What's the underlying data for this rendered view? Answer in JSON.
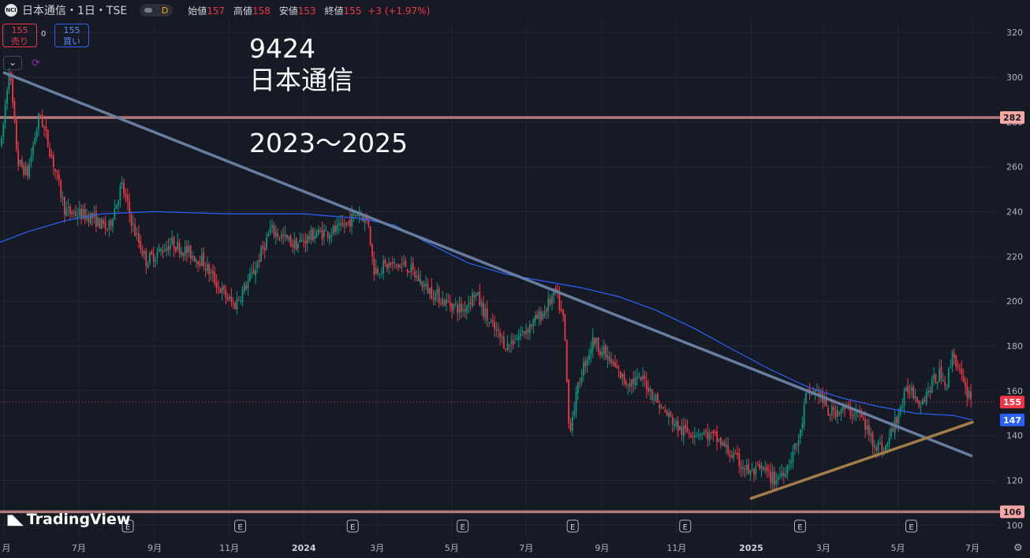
{
  "header": {
    "logo_text": "NCI",
    "symbol_title": "日本通信・1日・TSE",
    "pill_letter": "D",
    "open_label": "始値",
    "open_value": "157",
    "high_label": "高値",
    "high_value": "158",
    "low_label": "安値",
    "low_value": "153",
    "close_label": "終値",
    "close_value": "155",
    "change": "+3 (+1.97%)"
  },
  "trade": {
    "sell_price": "155",
    "sell_label": "売り",
    "spread": "0",
    "buy_price": "155",
    "buy_label": "買い"
  },
  "annotations": {
    "line1": "9424",
    "line2": "日本通信",
    "line3": "2023〜2025"
  },
  "watermark": "TradingView",
  "icons": [
    "chevron-down-icon",
    "sync-icon",
    "tradingview-logo-icon",
    "settings-gear-icon",
    "earnings-e-icon"
  ],
  "colors": {
    "up": "#089981",
    "down": "#f23645",
    "ma": "#2962ff",
    "hline": "#b07a79",
    "downtrend": "#677ea1",
    "uptrend": "#a47c48"
  },
  "chart_data": {
    "type": "candlestick",
    "title": "",
    "ylim": [
      97,
      327
    ],
    "y_ticks": [
      100,
      120,
      140,
      160,
      180,
      200,
      220,
      240,
      260,
      280,
      300,
      320
    ],
    "x_ticks": [
      "月",
      "7月",
      "9月",
      "11月",
      "2024",
      "3月",
      "5月",
      "7月",
      "9月",
      "11月",
      "2025",
      "3月",
      "5月",
      "7月"
    ],
    "current_price": {
      "label": "155",
      "value": 155
    },
    "moving_average_last": {
      "label": "147",
      "value": 147
    },
    "horizontal_lines": [
      {
        "label": "282",
        "value": 282
      },
      {
        "label": "106",
        "value": 106
      }
    ],
    "earnings_markers": [
      "E",
      "E",
      "E",
      "E",
      "E",
      "E",
      "E",
      "E"
    ],
    "trendlines": [
      {
        "name": "downtrend",
        "from": [
          "2023-05-01",
          302
        ],
        "to": [
          "2025-06-30",
          131
        ]
      },
      {
        "name": "uptrend",
        "from": [
          "2025-01-01",
          112
        ],
        "to": [
          "2025-07-01",
          146
        ]
      }
    ],
    "price_path": [
      [
        "2023-04-26",
        255
      ],
      [
        "2023-05-05",
        305
      ],
      [
        "2023-05-12",
        262
      ],
      [
        "2023-05-20",
        257
      ],
      [
        "2023-05-30",
        284
      ],
      [
        "2023-06-10",
        262
      ],
      [
        "2023-06-20",
        240
      ],
      [
        "2023-07-10",
        238
      ],
      [
        "2023-07-25",
        232
      ],
      [
        "2023-08-05",
        252
      ],
      [
        "2023-08-15",
        232
      ],
      [
        "2023-08-25",
        218
      ],
      [
        "2023-09-15",
        226
      ],
      [
        "2023-10-10",
        218
      ],
      [
        "2023-10-25",
        205
      ],
      [
        "2023-11-05",
        198
      ],
      [
        "2023-11-20",
        212
      ],
      [
        "2023-12-05",
        232
      ],
      [
        "2023-12-25",
        225
      ],
      [
        "2024-01-10",
        230
      ],
      [
        "2024-01-31",
        232
      ],
      [
        "2024-02-15",
        240
      ],
      [
        "2024-02-23",
        235
      ],
      [
        "2024-02-27",
        214
      ],
      [
        "2024-03-10",
        216
      ],
      [
        "2024-03-25",
        216
      ],
      [
        "2024-04-10",
        206
      ],
      [
        "2024-04-25",
        200
      ],
      [
        "2024-05-10",
        196
      ],
      [
        "2024-05-20",
        204
      ],
      [
        "2024-06-01",
        190
      ],
      [
        "2024-06-15",
        180
      ],
      [
        "2024-06-30",
        187
      ],
      [
        "2024-07-15",
        195
      ],
      [
        "2024-07-25",
        204
      ],
      [
        "2024-08-01",
        190
      ],
      [
        "2024-08-05",
        142
      ],
      [
        "2024-08-15",
        168
      ],
      [
        "2024-08-25",
        183
      ],
      [
        "2024-09-05",
        175
      ],
      [
        "2024-09-20",
        164
      ],
      [
        "2024-10-05",
        165
      ],
      [
        "2024-10-20",
        152
      ],
      [
        "2024-11-05",
        142
      ],
      [
        "2024-11-20",
        142
      ],
      [
        "2024-12-05",
        138
      ],
      [
        "2024-12-20",
        129
      ],
      [
        "2025-01-01",
        123
      ],
      [
        "2025-01-10",
        125
      ],
      [
        "2025-01-20",
        120
      ],
      [
        "2025-01-30",
        126
      ],
      [
        "2025-02-10",
        140
      ],
      [
        "2025-02-15",
        158
      ],
      [
        "2025-02-25",
        160
      ],
      [
        "2025-03-05",
        150
      ],
      [
        "2025-03-15",
        152
      ],
      [
        "2025-03-30",
        150
      ],
      [
        "2025-04-10",
        138
      ],
      [
        "2025-04-20",
        133
      ],
      [
        "2025-04-30",
        148
      ],
      [
        "2025-05-10",
        162
      ],
      [
        "2025-05-20",
        155
      ],
      [
        "2025-05-30",
        164
      ],
      [
        "2025-06-05",
        168
      ],
      [
        "2025-06-10",
        163
      ],
      [
        "2025-06-15",
        178
      ],
      [
        "2025-06-25",
        160
      ],
      [
        "2025-07-01",
        158
      ]
    ],
    "moving_average": [
      [
        "2023-04-26",
        226
      ],
      [
        "2023-05-20",
        231
      ],
      [
        "2023-06-20",
        236
      ],
      [
        "2023-07-20",
        239
      ],
      [
        "2023-09-01",
        240
      ],
      [
        "2023-11-01",
        239
      ],
      [
        "2024-01-01",
        239
      ],
      [
        "2024-02-15",
        237
      ],
      [
        "2024-03-15",
        234
      ],
      [
        "2024-04-15",
        225
      ],
      [
        "2024-05-15",
        217
      ],
      [
        "2024-06-15",
        212
      ],
      [
        "2024-07-15",
        209
      ],
      [
        "2024-08-15",
        206
      ],
      [
        "2024-09-15",
        202
      ],
      [
        "2024-10-15",
        196
      ],
      [
        "2024-11-15",
        188
      ],
      [
        "2024-12-15",
        179
      ],
      [
        "2025-01-15",
        170
      ],
      [
        "2025-02-15",
        162
      ],
      [
        "2025-03-15",
        157
      ],
      [
        "2025-04-15",
        153
      ],
      [
        "2025-05-15",
        150
      ],
      [
        "2025-06-15",
        149
      ],
      [
        "2025-07-01",
        147
      ]
    ]
  }
}
